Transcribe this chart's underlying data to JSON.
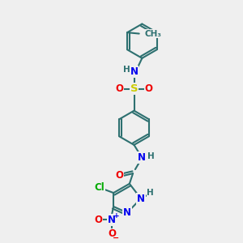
{
  "bg_color": "#efefef",
  "bond_color": "#2d7070",
  "bond_width": 1.5,
  "atom_colors": {
    "N": "#0000ee",
    "O": "#ee0000",
    "S": "#cccc00",
    "Cl": "#00aa00",
    "H": "#2d7070",
    "C": "#2d7070"
  },
  "font_size": 8.5
}
